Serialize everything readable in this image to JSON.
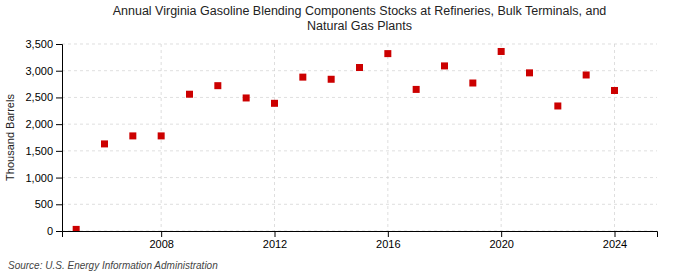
{
  "chart_data": {
    "type": "scatter",
    "title": "Annual Virginia Gasoline Blending Components Stocks at Refineries, Bulk Terminals, and\nNatural Gas Plants",
    "y_label": "Thousand Barrels",
    "source": "Source: U.S. Energy Information Administration",
    "x": [
      2005,
      2006,
      2007,
      2008,
      2009,
      2010,
      2011,
      2012,
      2013,
      2014,
      2015,
      2016,
      2017,
      2018,
      2019,
      2020,
      2021,
      2022,
      2023,
      2024
    ],
    "values": [
      30,
      1630,
      1780,
      1780,
      2560,
      2720,
      2490,
      2390,
      2880,
      2840,
      3060,
      3320,
      2650,
      3090,
      2770,
      3360,
      2960,
      2340,
      2920,
      2630
    ],
    "color": "#cc0000",
    "marker": "square",
    "xlim": [
      2004.5,
      2025.5
    ],
    "xticks": [
      2008,
      2012,
      2016,
      2020,
      2024
    ],
    "ylim": [
      0,
      3500
    ],
    "yticks": [
      0,
      500,
      {
        "value": 1000,
        "label": "1,000"
      },
      {
        "value": 1500,
        "label": "1,500"
      },
      {
        "value": 2000,
        "label": "2,000"
      },
      {
        "value": 2500,
        "label": "2,500"
      },
      {
        "value": 3000,
        "label": "3,000"
      },
      {
        "value": 3500,
        "label": "3,500"
      }
    ],
    "grid": true
  }
}
